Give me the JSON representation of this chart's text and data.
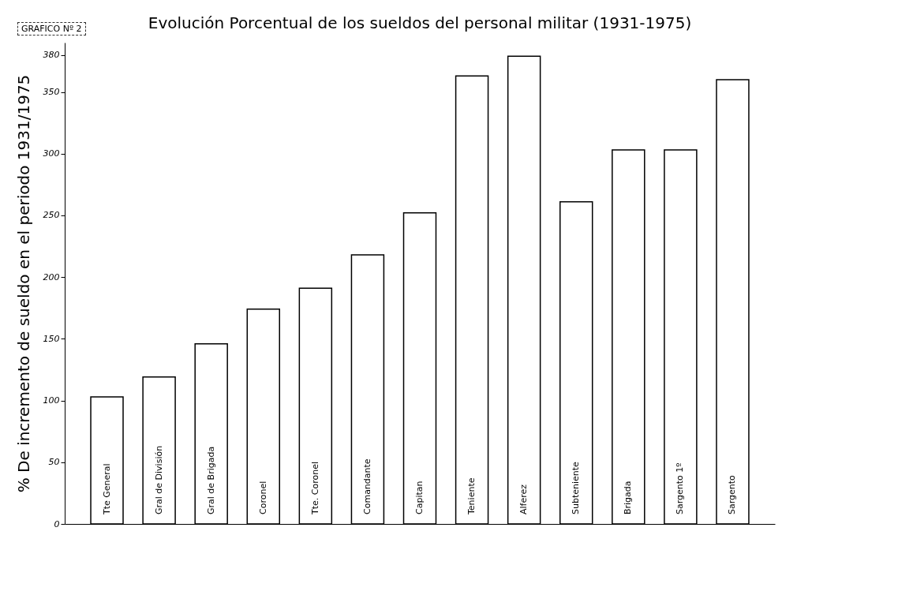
{
  "chart_data": {
    "type": "bar",
    "title": "Evolución Porcentual de los sueldos del personal militar (1931-1975)",
    "ylabel": "% De incremento de sueldo en el periodo 1931/1975",
    "annotations": [
      "GRAFICO Nº 2"
    ],
    "categories": [
      "Tte General",
      "Gral de División",
      "Gral de Brigada",
      "Coronel",
      "Tte. Coronel",
      "Comandante",
      "Capitan",
      "Teniente",
      "Alferez",
      "Subteniente",
      "Brigada",
      "Sargento 1º",
      "Sargento"
    ],
    "values": [
      103,
      119,
      146,
      174,
      191,
      218,
      252,
      363,
      379,
      261,
      303,
      303,
      360
    ],
    "color": "#ffffff",
    "ylim": [
      0,
      390
    ],
    "yticks": [
      0,
      50,
      100,
      150,
      200,
      250,
      300,
      350,
      380
    ],
    "grid": false
  }
}
